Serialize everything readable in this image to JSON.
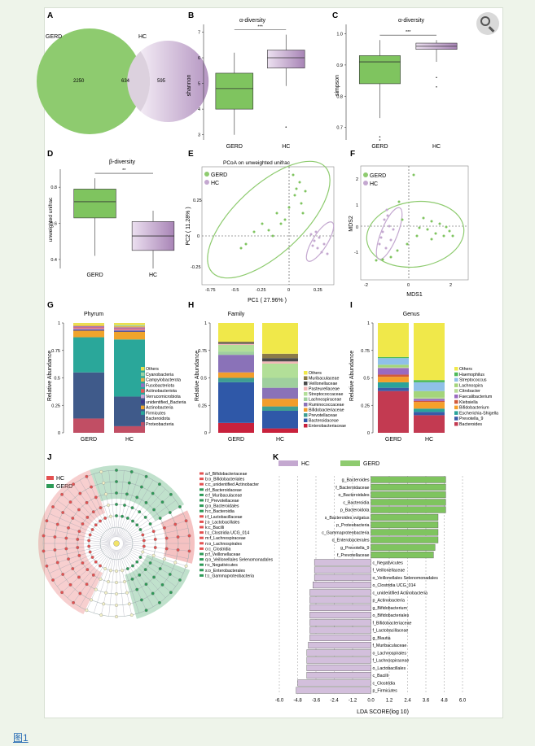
{
  "colors": {
    "gerd": "#7fc45f",
    "hc": "#c4a8d0",
    "hc_dark": "#9a72a8",
    "accent_link": "#2a6db5"
  },
  "figure_link": {
    "label": "图1"
  },
  "zoom_button": {
    "icon": "zoom-in-icon"
  },
  "panels": {
    "A": {
      "letter": "A",
      "gerd_label": "GERD",
      "hc_label": "HC",
      "gerd_only": "2250",
      "shared": "634",
      "hc_only": "595"
    },
    "B": {
      "letter": "B",
      "title": "α-diversity",
      "ylabel": "shannon",
      "sig": "***",
      "yticks": [
        "3",
        "4",
        "5",
        "6",
        "7"
      ]
    },
    "C": {
      "letter": "C",
      "title": "α-diversity",
      "ylabel": "simpson",
      "sig": "***",
      "yticks": [
        "0.7",
        "0.8",
        "0.9",
        "1.0"
      ]
    },
    "D": {
      "letter": "D",
      "title": "β-diversity",
      "ylabel": "unweighted unifrac",
      "sig": "**",
      "yticks": [
        "0.4",
        "0.6",
        "0.8"
      ]
    },
    "E": {
      "letter": "E",
      "title": "PCoA on unweighted unifrac",
      "xlabel": "PC1 ( 27.96% )",
      "ylabel": "PC2 ( 11.28% )",
      "legend": [
        "GERD",
        "HC"
      ],
      "xticks": [
        "-0.75",
        "-0.5",
        "-0.25",
        "0",
        "0.25"
      ],
      "yticks": [
        "0.25",
        "0",
        "-0.25"
      ]
    },
    "F": {
      "letter": "F",
      "xlabel": "MDS1",
      "ylabel": "MDS2",
      "legend": [
        "GERD",
        "HC"
      ],
      "xticks": [
        "-2",
        "0",
        "2"
      ],
      "yticks": [
        "2",
        "1",
        "0",
        "-1"
      ]
    },
    "G": {
      "letter": "G",
      "title": "Phyrum",
      "ylabel": "Relative Abundance",
      "yticks": [
        "1",
        "0.75",
        "0.5",
        "0.25",
        "0"
      ],
      "legend": [
        "Others",
        "Cyanobacteria",
        "Campylobacterota",
        "Fusobacteriota",
        "Actinobacteriota",
        "Verrucomicrobiota",
        "unidentified_Bacteria",
        "Actinobacteria",
        "Firmicutes",
        "Bacteroidota",
        "Proteobacteria"
      ]
    },
    "H": {
      "letter": "H",
      "title": "Family",
      "ylabel": "Relative Abundance",
      "yticks": [
        "1",
        "0.75",
        "0.5",
        "0.25",
        "0"
      ],
      "legend": [
        "Others",
        "Muribaculaceae",
        "Veillonellaceae",
        "Pasteurellaceae",
        "Streptococcaceae",
        "Lachnospiraceae",
        "Ruminococcaceae",
        "Bifidobacteriaceae",
        "Prevotellaceae",
        "Bacteroidaceae",
        "Enterobacteriaceae"
      ]
    },
    "I": {
      "letter": "I",
      "title": "Genus",
      "ylabel": "Relative Abundance",
      "yticks": [
        "1",
        "0.75",
        "0.5",
        "0.25",
        "0"
      ],
      "legend": [
        "Others",
        "Haemophilus",
        "Streptococcus",
        "Lachnospira",
        "Citrobacter",
        "Faecalibacterium",
        "Klebsiella",
        "Bifidobacterium",
        "Escherichia-Shigella",
        "Prevotella_9",
        "Bacteroides"
      ]
    },
    "J": {
      "letter": "J",
      "legend": [
        "HC",
        "GERD"
      ],
      "clades": [
        "a:f_Bifidobacteriaceae",
        "b:o_Bifidobacteriales",
        "c:c_unidentified Actinobacter",
        "d:f_Bacteroidaceae",
        "e:f_Muribaculaceae",
        "f:f_Prevotellaceae",
        "g:o_Bacteroidales",
        "h:c_Bacteroidia",
        "i:f_Lactobacillaceae",
        "j:o_Lactobacillales",
        "k:c_Bacilli",
        "l:c_Clostridia UCG_014",
        "m:f_Lachnospiraceae",
        "n:o_Lachnospirales",
        "o:c_Clostridia",
        "p:f_Veillonellaceae",
        "q:o_Veillonellales Selenomonadales",
        "r:c_Negativicutes",
        "s:o_Enterobacterales",
        "t:c_Gammaproteobacteria"
      ]
    },
    "K": {
      "letter": "K",
      "legend": [
        "HC",
        "GERD"
      ],
      "xlabel": "LDA SCORE(log 10)",
      "xticks": [
        "-6.0",
        "-4.8",
        "-3.6",
        "-2.4",
        "-1.2",
        "0.0",
        "1.2",
        "2.4",
        "3.6",
        "4.8",
        "6.0"
      ]
    }
  },
  "chart_data": [
    {
      "panel": "A",
      "type": "venn",
      "sets": [
        {
          "name": "GERD",
          "only": 2250
        },
        {
          "name": "HC",
          "only": 595
        }
      ],
      "shared": 634
    },
    {
      "panel": "B",
      "type": "boxplot",
      "title": "α-diversity",
      "ylabel": "shannon",
      "categories": [
        "GERD",
        "HC"
      ],
      "ylim": [
        2.8,
        7.3
      ],
      "boxes": [
        {
          "min": 3.0,
          "q1": 4.0,
          "median": 4.8,
          "q3": 5.4,
          "max": 6.2
        },
        {
          "min": 4.9,
          "q1": 5.6,
          "median": 6.0,
          "q3": 6.3,
          "max": 6.9
        }
      ],
      "outliers": [
        [],
        [
          3.3
        ]
      ],
      "significance": "***"
    },
    {
      "panel": "C",
      "type": "boxplot",
      "title": "α-diversity",
      "ylabel": "simpson",
      "categories": [
        "GERD",
        "HC"
      ],
      "ylim": [
        0.66,
        1.03
      ],
      "boxes": [
        {
          "min": 0.73,
          "q1": 0.84,
          "median": 0.91,
          "q3": 0.93,
          "max": 0.98
        },
        {
          "min": 0.91,
          "q1": 0.95,
          "median": 0.96,
          "q3": 0.97,
          "max": 0.98
        }
      ],
      "outliers": [
        [
          0.67,
          0.66
        ],
        [
          0.86,
          0.83
        ]
      ],
      "significance": "***"
    },
    {
      "panel": "D",
      "type": "boxplot",
      "title": "β-diversity",
      "ylabel": "unweighted unifrac",
      "categories": [
        "GERD",
        "HC"
      ],
      "ylim": [
        0.35,
        0.9
      ],
      "boxes": [
        {
          "min": 0.42,
          "q1": 0.63,
          "median": 0.72,
          "q3": 0.79,
          "max": 0.85
        },
        {
          "min": 0.35,
          "q1": 0.45,
          "median": 0.53,
          "q3": 0.61,
          "max": 0.67
        }
      ],
      "outliers": [
        [],
        []
      ],
      "significance": "**"
    },
    {
      "panel": "G",
      "type": "stacked_bar",
      "title": "Phyrum",
      "categories": [
        "GERD",
        "HC"
      ],
      "ylim": [
        0,
        1
      ],
      "series": [
        {
          "name": "Proteobacteria",
          "values": [
            0.13,
            0.06
          ]
        },
        {
          "name": "Bacteroidota",
          "values": [
            0.42,
            0.27
          ]
        },
        {
          "name": "Firmicutes",
          "values": [
            0.32,
            0.52
          ]
        },
        {
          "name": "Actinobacteria",
          "values": [
            0.06,
            0.07
          ]
        },
        {
          "name": "unidentified_Bacteria",
          "values": [
            0.01,
            0.01
          ]
        },
        {
          "name": "Verrucomicrobiota",
          "values": [
            0.01,
            0.01
          ]
        },
        {
          "name": "Actinobacteriota",
          "values": [
            0.01,
            0.01
          ]
        },
        {
          "name": "Fusobacteriota",
          "values": [
            0.01,
            0.01
          ]
        },
        {
          "name": "Campylobacterota",
          "values": [
            0.01,
            0.01
          ]
        },
        {
          "name": "Cyanobacteria",
          "values": [
            0.0,
            0.01
          ]
        },
        {
          "name": "Others",
          "values": [
            0.02,
            0.02
          ]
        }
      ]
    },
    {
      "panel": "H",
      "type": "stacked_bar",
      "title": "Family",
      "categories": [
        "GERD",
        "HC"
      ],
      "ylim": [
        0,
        1
      ],
      "series": [
        {
          "name": "Enterobacteriaceae",
          "values": [
            0.09,
            0.04
          ]
        },
        {
          "name": "Bacteroidaceae",
          "values": [
            0.37,
            0.16
          ]
        },
        {
          "name": "Prevotellaceae",
          "values": [
            0.04,
            0.04
          ]
        },
        {
          "name": "Bifidobacteriaceae",
          "values": [
            0.05,
            0.07
          ]
        },
        {
          "name": "Ruminococcaceae",
          "values": [
            0.16,
            0.1
          ]
        },
        {
          "name": "Lachnospiraceae",
          "values": [
            0.03,
            0.09
          ]
        },
        {
          "name": "Streptococcaceae",
          "values": [
            0.06,
            0.13
          ]
        },
        {
          "name": "Pasteurellaceae",
          "values": [
            0.01,
            0.02
          ]
        },
        {
          "name": "Veillonellaceae",
          "values": [
            0.01,
            0.03
          ]
        },
        {
          "name": "Muribaculaceae",
          "values": [
            0.01,
            0.04
          ]
        },
        {
          "name": "Others",
          "values": [
            0.17,
            0.28
          ]
        }
      ]
    },
    {
      "panel": "I",
      "type": "stacked_bar",
      "title": "Genus",
      "categories": [
        "GERD",
        "HC"
      ],
      "ylim": [
        0,
        1
      ],
      "series": [
        {
          "name": "Bacteroides",
          "values": [
            0.38,
            0.16
          ]
        },
        {
          "name": "Prevotella_9",
          "values": [
            0.03,
            0.03
          ]
        },
        {
          "name": "Escherichia-Shigella",
          "values": [
            0.05,
            0.03
          ]
        },
        {
          "name": "Bifidobacterium",
          "values": [
            0.05,
            0.06
          ]
        },
        {
          "name": "Klebsiella",
          "values": [
            0.02,
            0.01
          ]
        },
        {
          "name": "Faecalibacterium",
          "values": [
            0.06,
            0.02
          ]
        },
        {
          "name": "Citrobacter",
          "values": [
            0.01,
            0.01
          ]
        },
        {
          "name": "Lachnospira",
          "values": [
            0.02,
            0.06
          ]
        },
        {
          "name": "Streptococcus",
          "values": [
            0.06,
            0.08
          ]
        },
        {
          "name": "Haemophilus",
          "values": [
            0.01,
            0.02
          ]
        },
        {
          "name": "Others",
          "values": [
            0.31,
            0.52
          ]
        }
      ]
    },
    {
      "panel": "K",
      "type": "bar",
      "orientation": "horizontal",
      "xlabel": "LDA SCORE(log 10)",
      "xlim": [
        -6,
        6
      ],
      "categories": [
        "g_Bacteroides",
        "f_Bacteroidaceae",
        "o_Bacteroidales",
        "c_Bacteroidia",
        "p_Bacteroidota",
        "s_Bacteroides vulgatus",
        "p_Proteobacteria",
        "c_Gammaproteobacteria",
        "o_Enterobacterales",
        "g_Prevotella_9",
        "f_Prevotellaceae",
        "c_Negativicutes",
        "f_Veillonellaceae",
        "o_Veillonellales Selenomonadales",
        "o_Clostridia UCG_014",
        "c_unidentified Actinobacteria",
        "p_Actinobacteria",
        "g_Bifidobacterium",
        "o_Bifidobacteriales",
        "f_Bifidobacteriaceae",
        "f_Lactobacillaceae",
        "g_Blautia",
        "f_Muribaculaceae",
        "o_Lachnospirales",
        "f_Lachnospiraceae",
        "o_Lactobacillales",
        "c_Bacilli",
        "c_Clostridia",
        "p_Firmicutes"
      ],
      "values": [
        4.9,
        4.9,
        4.9,
        4.9,
        4.9,
        4.4,
        4.4,
        4.4,
        4.4,
        4.2,
        4.1,
        -3.7,
        -3.7,
        -3.7,
        -3.8,
        -4.0,
        -4.0,
        -4.0,
        -4.0,
        -4.0,
        -4.0,
        -4.0,
        -4.1,
        -4.2,
        -4.2,
        -4.2,
        -4.2,
        -4.8,
        -4.9
      ],
      "groups": [
        "GERD",
        "GERD",
        "GERD",
        "GERD",
        "GERD",
        "GERD",
        "GERD",
        "GERD",
        "GERD",
        "GERD",
        "GERD",
        "HC",
        "HC",
        "HC",
        "HC",
        "HC",
        "HC",
        "HC",
        "HC",
        "HC",
        "HC",
        "HC",
        "HC",
        "HC",
        "HC",
        "HC",
        "HC",
        "HC",
        "HC"
      ]
    }
  ]
}
